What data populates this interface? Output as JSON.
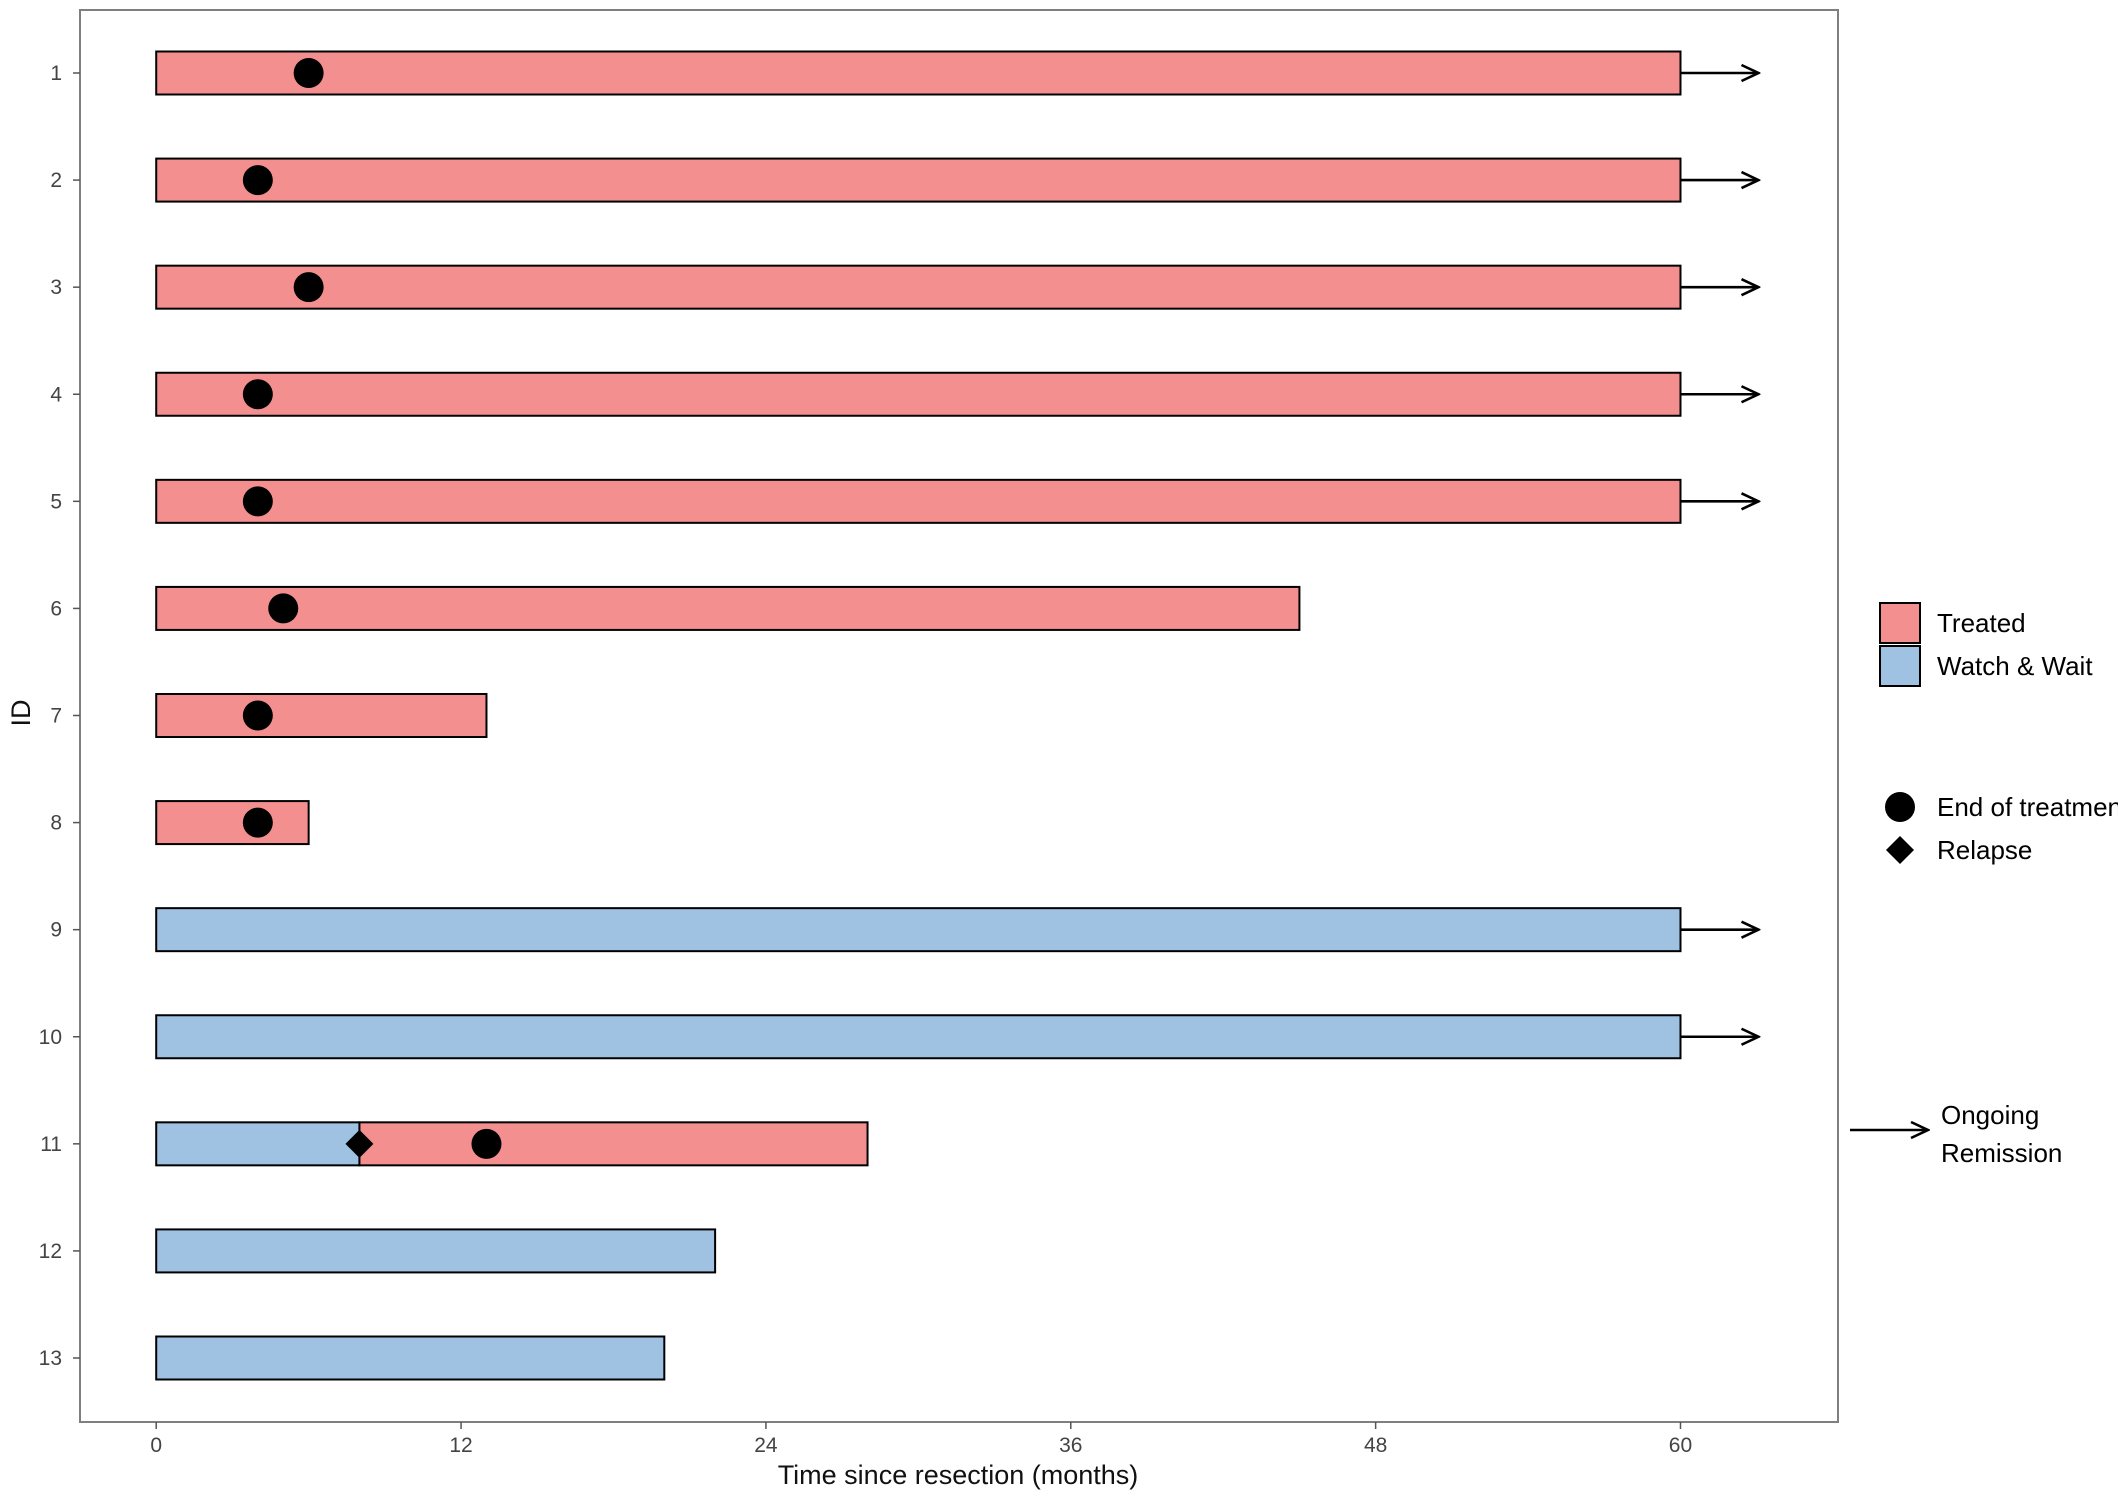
{
  "chart_data": {
    "type": "swimmer",
    "xlabel": "Time since resection (months)",
    "ylabel": "ID",
    "xlim": [
      -3,
      66.2
    ],
    "xticks": [
      0,
      12,
      24,
      36,
      48,
      60
    ],
    "grid": false,
    "legend_position": "right",
    "colors": {
      "Treated": "#f48f8f",
      "Watch & Wait": "#9fc2e2"
    },
    "rows": [
      {
        "id": "1",
        "segments": [
          {
            "group": "Treated",
            "start": 0,
            "end": 60
          }
        ],
        "end_of_treatment": 6,
        "relapse": null,
        "ongoing": true
      },
      {
        "id": "2",
        "segments": [
          {
            "group": "Treated",
            "start": 0,
            "end": 60
          }
        ],
        "end_of_treatment": 4,
        "relapse": null,
        "ongoing": true
      },
      {
        "id": "3",
        "segments": [
          {
            "group": "Treated",
            "start": 0,
            "end": 60
          }
        ],
        "end_of_treatment": 6,
        "relapse": null,
        "ongoing": true
      },
      {
        "id": "4",
        "segments": [
          {
            "group": "Treated",
            "start": 0,
            "end": 60
          }
        ],
        "end_of_treatment": 4,
        "relapse": null,
        "ongoing": true
      },
      {
        "id": "5",
        "segments": [
          {
            "group": "Treated",
            "start": 0,
            "end": 60
          }
        ],
        "end_of_treatment": 4,
        "relapse": null,
        "ongoing": true
      },
      {
        "id": "6",
        "segments": [
          {
            "group": "Treated",
            "start": 0,
            "end": 45
          }
        ],
        "end_of_treatment": 5,
        "relapse": null,
        "ongoing": false
      },
      {
        "id": "7",
        "segments": [
          {
            "group": "Treated",
            "start": 0,
            "end": 13
          }
        ],
        "end_of_treatment": 4,
        "relapse": null,
        "ongoing": false
      },
      {
        "id": "8",
        "segments": [
          {
            "group": "Treated",
            "start": 0,
            "end": 6
          }
        ],
        "end_of_treatment": 4,
        "relapse": null,
        "ongoing": false
      },
      {
        "id": "9",
        "segments": [
          {
            "group": "Watch & Wait",
            "start": 0,
            "end": 60
          }
        ],
        "end_of_treatment": null,
        "relapse": null,
        "ongoing": true
      },
      {
        "id": "10",
        "segments": [
          {
            "group": "Watch & Wait",
            "start": 0,
            "end": 60
          }
        ],
        "end_of_treatment": null,
        "relapse": null,
        "ongoing": true
      },
      {
        "id": "11",
        "segments": [
          {
            "group": "Watch & Wait",
            "start": 0,
            "end": 8
          },
          {
            "group": "Treated",
            "start": 8,
            "end": 28
          }
        ],
        "end_of_treatment": 13,
        "relapse": 8,
        "ongoing": false
      },
      {
        "id": "12",
        "segments": [
          {
            "group": "Watch & Wait",
            "start": 0,
            "end": 22
          }
        ],
        "end_of_treatment": null,
        "relapse": null,
        "ongoing": false
      },
      {
        "id": "13",
        "segments": [
          {
            "group": "Watch & Wait",
            "start": 0,
            "end": 20
          }
        ],
        "end_of_treatment": null,
        "relapse": null,
        "ongoing": false
      }
    ],
    "legend": {
      "groups": [
        "Treated",
        "Watch & Wait"
      ],
      "markers": [
        {
          "label": "End of treatment",
          "shape": "circle"
        },
        {
          "label": "Relapse",
          "shape": "diamond"
        }
      ],
      "arrow_lines": [
        "Ongoing",
        "Remission"
      ]
    }
  }
}
